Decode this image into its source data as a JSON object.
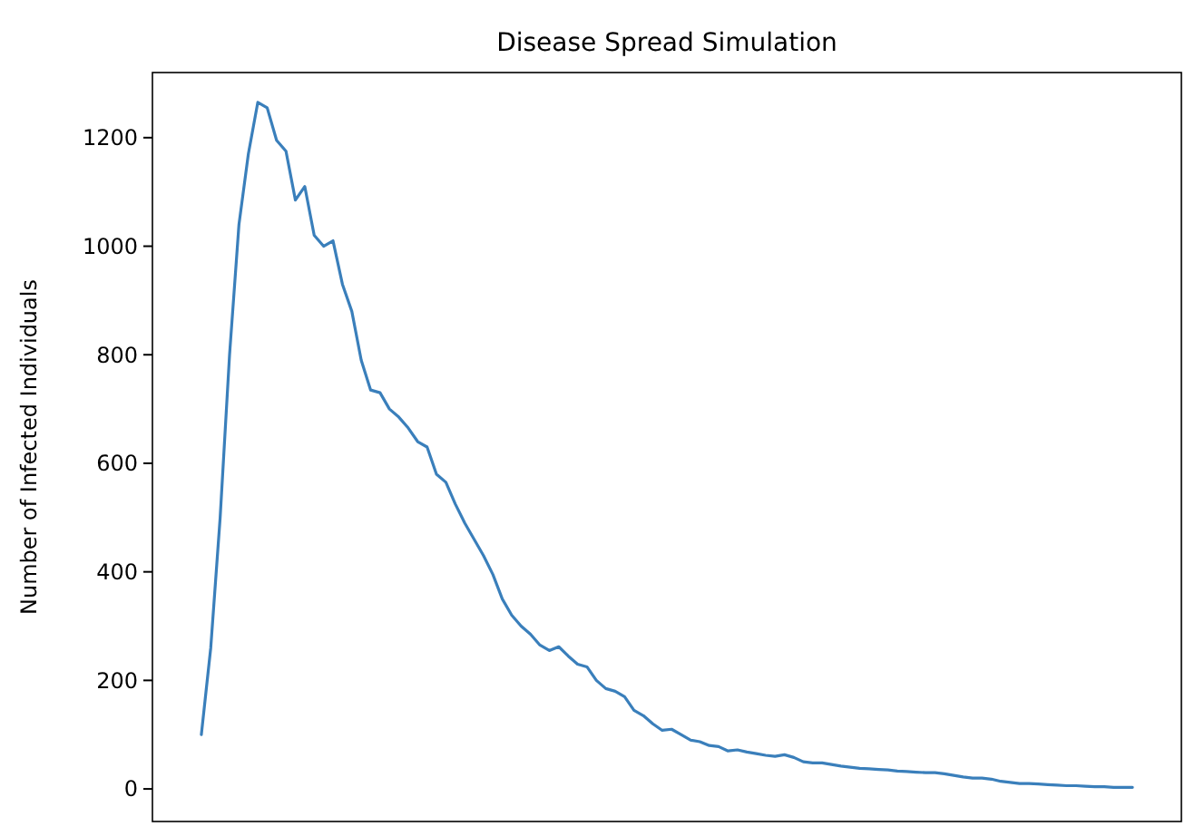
{
  "chart_data": {
    "type": "line",
    "title": "Disease Spread Simulation",
    "ylabel": "Number of Infected Individuals",
    "categories": [
      null,
      null,
      null,
      null,
      null,
      null,
      null,
      null,
      null,
      null,
      null,
      null,
      null,
      null,
      null,
      null,
      null,
      null,
      null,
      null,
      null,
      null,
      null,
      null,
      null,
      null,
      null,
      null,
      null,
      null,
      null,
      null,
      null,
      null,
      null,
      null,
      null,
      null,
      null,
      null,
      null,
      null,
      null,
      null,
      null,
      null,
      null,
      null,
      null,
      null,
      null,
      null,
      null,
      null,
      null,
      null,
      null,
      null,
      null,
      null,
      null,
      null,
      null,
      null,
      null,
      null,
      null,
      null,
      null,
      null,
      null,
      null,
      null,
      null,
      null,
      null,
      null,
      null,
      null,
      null,
      null,
      null,
      null,
      null,
      null,
      null,
      null,
      null,
      null,
      null,
      null,
      null,
      null,
      null,
      null,
      null,
      null,
      null,
      null,
      null
    ],
    "series": [
      {
        "color": "#3a7fbb",
        "values": [
          100,
          260,
          500,
          800,
          1040,
          1170,
          1265,
          1255,
          1195,
          1175,
          1085,
          1110,
          1020,
          1000,
          1010,
          930,
          880,
          790,
          735,
          730,
          700,
          685,
          665,
          640,
          630,
          580,
          565,
          525,
          490,
          460,
          430,
          395,
          350,
          320,
          300,
          285,
          265,
          255,
          262,
          245,
          230,
          225,
          200,
          185,
          180,
          170,
          145,
          135,
          120,
          108,
          110,
          100,
          90,
          87,
          80,
          78,
          70,
          72,
          68,
          65,
          62,
          60,
          63,
          58,
          50,
          48,
          48,
          45,
          42,
          40,
          38,
          37,
          36,
          35,
          33,
          32,
          31,
          30,
          30,
          28,
          25,
          22,
          20,
          20,
          18,
          14,
          12,
          10,
          10,
          9,
          8,
          7,
          6,
          6,
          5,
          4,
          4,
          3,
          3,
          3
        ]
      }
    ],
    "ylim": [
      -60,
      1320
    ],
    "yticks": [
      0,
      200,
      400,
      600,
      800,
      1000,
      1200
    ],
    "tick_labels": "y",
    "marker": "none",
    "line_style": "solid"
  }
}
